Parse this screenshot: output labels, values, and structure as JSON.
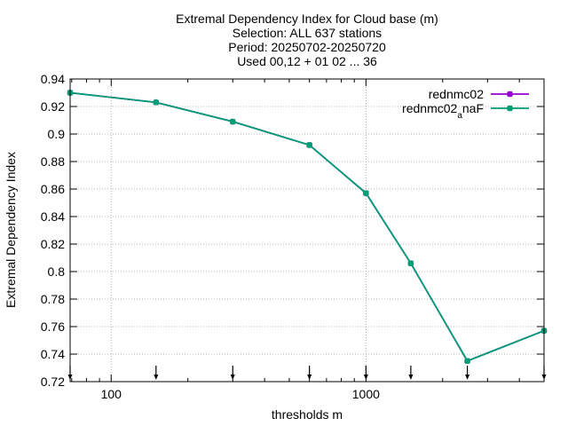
{
  "chart_data": {
    "type": "line",
    "title_lines": [
      "Extremal Dependency Index  for Cloud base (m)",
      "Selection: ALL    637 stations",
      "Period: 20250702-20250720",
      "Used 00,12 + 01 02 ... 36"
    ],
    "xlabel": "thresholds m",
    "ylabel": "Extremal Dependency Index",
    "x_scale": "log",
    "xlim": [
      69,
      5000
    ],
    "ylim": [
      0.72,
      0.94
    ],
    "x_ticks": [
      100,
      1000
    ],
    "x_tick_labels": [
      "100",
      "1000"
    ],
    "y_ticks": [
      0.72,
      0.74,
      0.76,
      0.78,
      0.8,
      0.82,
      0.84,
      0.86,
      0.88,
      0.9,
      0.92,
      0.94
    ],
    "y_tick_labels": [
      "0.72",
      "0.74",
      "0.76",
      "0.78",
      "0.8",
      "0.82",
      "0.84",
      "0.86",
      "0.88",
      "0.9",
      "0.92",
      "0.94"
    ],
    "grid": true,
    "legend_position": "top-right",
    "arrow_markers_x": [
      69,
      150,
      300,
      600,
      1000,
      1500,
      2500,
      5000
    ],
    "series": [
      {
        "name": "rednmc02",
        "color": "#9400d3",
        "x": [
          69,
          150,
          300,
          600,
          1000,
          1500,
          2500,
          5000
        ],
        "y": [
          0.93,
          0.923,
          0.909,
          0.892,
          0.857,
          0.806,
          0.735,
          0.757
        ]
      },
      {
        "name": "rednmc02",
        "name_sub": "a",
        "name_suffix": "naF",
        "color": "#009e73",
        "x": [
          69,
          150,
          300,
          600,
          1000,
          1500,
          2500,
          5000
        ],
        "y": [
          0.93,
          0.923,
          0.909,
          0.892,
          0.857,
          0.806,
          0.735,
          0.757
        ]
      }
    ]
  }
}
